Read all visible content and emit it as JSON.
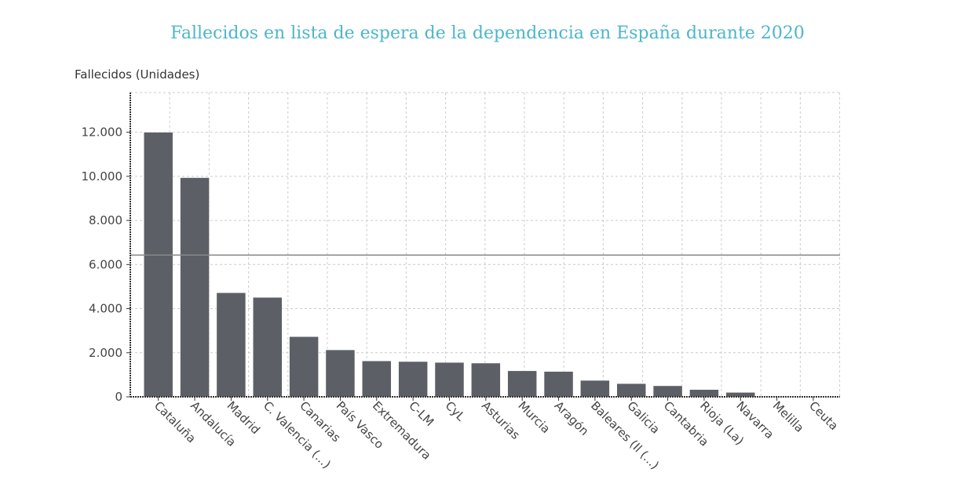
{
  "chart_data": {
    "type": "bar",
    "title": "Fallecidos en lista de espera de la dependencia en España durante 2020",
    "ylabel": "Fallecidos (Unidades)",
    "xlabel": "",
    "categories": [
      "Cataluña",
      "Andalucía",
      "Madrid",
      "C. Valencia (...)",
      "Canarias",
      "País Vasco",
      "Extremadura",
      "C-LM",
      "CyL",
      "Asturias",
      "Murcia",
      "Aragón",
      "Baleares (Il (...)",
      "Galicia",
      "Cantabria",
      "Rioja (La)",
      "Navarra",
      "Melilla",
      "Ceuta"
    ],
    "values": [
      12000,
      9940,
      4720,
      4510,
      2730,
      2130,
      1630,
      1600,
      1560,
      1530,
      1180,
      1150,
      745,
      600,
      500,
      330,
      200,
      20,
      10
    ],
    "ylim": [
      0,
      13800
    ],
    "yticks": [
      0,
      2000,
      4000,
      6000,
      8000,
      10000,
      12000
    ],
    "ytick_labels": [
      "0",
      "2.000",
      "4.000",
      "6.000",
      "8.000",
      "10.000",
      "12.000"
    ],
    "reference_line": 6430,
    "grid": true,
    "bar_color": "#5c6066",
    "title_color": "#4db6c9"
  }
}
